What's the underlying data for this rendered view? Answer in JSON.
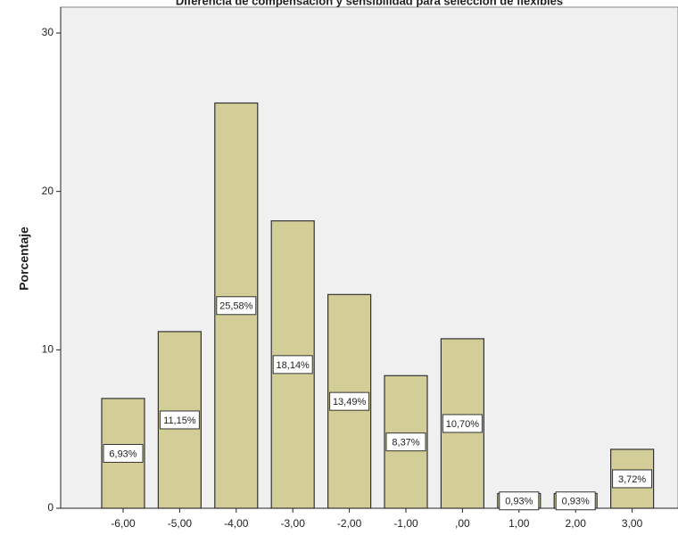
{
  "chart_data": {
    "type": "bar",
    "title": "Diferencia de compensación y sensibilidad para selección de flexibles",
    "y_label": "Porcentaje",
    "categories": [
      "-6,00",
      "-5,00",
      "-4,00",
      "-3,00",
      "-2,00",
      "-1,00",
      ",00",
      "1,00",
      "2,00",
      "3,00"
    ],
    "values": [
      6.93,
      11.15,
      25.58,
      18.14,
      13.49,
      8.37,
      10.7,
      0.93,
      0.93,
      3.72
    ],
    "value_labels": [
      "6,93%",
      "11,15%",
      "25,58%",
      "18,14%",
      "13,49%",
      "8,37%",
      "10,70%",
      "0,93%",
      "0,93%",
      "3,72%"
    ],
    "color": "#d3ce97",
    "ylim": [
      0,
      30
    ],
    "yticks": [
      0,
      10,
      20,
      30
    ]
  }
}
